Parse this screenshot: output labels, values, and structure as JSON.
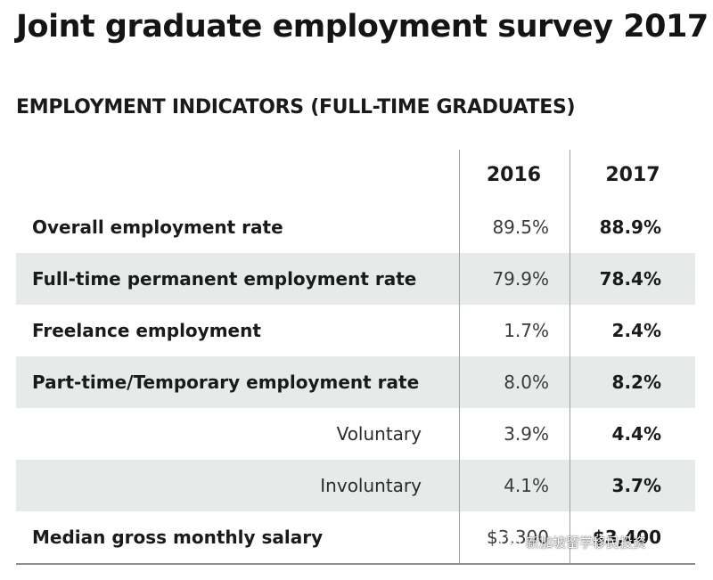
{
  "title": "Joint graduate employment survey 2017",
  "subtitle": "EMPLOYMENT INDICATORS (FULL-TIME GRADUATES)",
  "watermark": {
    "text": "新加坡留学移民投资",
    "icon": "wechat-logo-icon"
  },
  "colors": {
    "row_shade": "#e6ebe9",
    "text": "#1a1a1a",
    "rule": "#9aa3a1"
  },
  "chart_data": {
    "type": "table",
    "title": "Joint graduate employment survey 2017",
    "subtitle": "EMPLOYMENT INDICATORS (FULL-TIME GRADUATES)",
    "columns": [
      "",
      "2016",
      "2017"
    ],
    "rows": [
      {
        "label": "Overall employment rate",
        "indent": false,
        "shaded": false,
        "v2016": "89.5%",
        "v2017": "88.9%"
      },
      {
        "label": "Full-time permanent employment rate",
        "indent": false,
        "shaded": true,
        "v2016": "79.9%",
        "v2017": "78.4%"
      },
      {
        "label": "Freelance employment",
        "indent": false,
        "shaded": false,
        "v2016": "1.7%",
        "v2017": "2.4%"
      },
      {
        "label": "Part-time/Temporary employment rate",
        "indent": false,
        "shaded": true,
        "v2016": "8.0%",
        "v2017": "8.2%"
      },
      {
        "label": "Voluntary",
        "indent": true,
        "shaded": false,
        "v2016": "3.9%",
        "v2017": "4.4%"
      },
      {
        "label": "Involuntary",
        "indent": true,
        "shaded": true,
        "v2016": "4.1%",
        "v2017": "3.7%"
      },
      {
        "label": "Median gross monthly salary",
        "indent": false,
        "shaded": false,
        "v2016": "$3,300",
        "v2017": "$3,400"
      }
    ]
  }
}
